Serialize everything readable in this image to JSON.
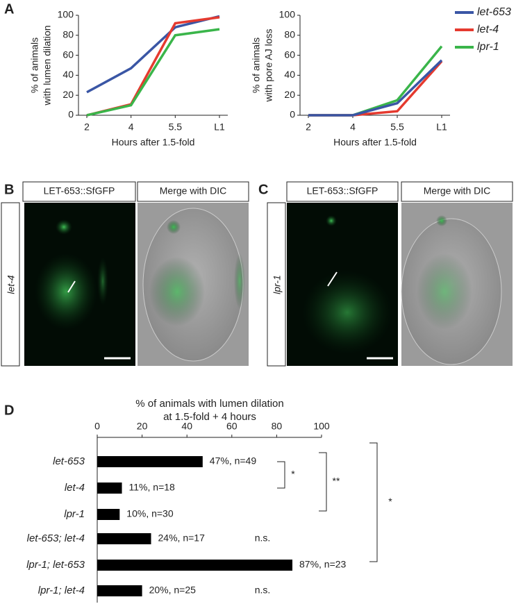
{
  "panel_labels": [
    "A",
    "B",
    "C",
    "D"
  ],
  "chart_data": [
    {
      "type": "line",
      "y_label": [
        "% of animals",
        "with lumen dilation"
      ],
      "x_label": "Hours after 1.5-fold",
      "categories": [
        "2",
        "4",
        "5.5",
        "L1"
      ],
      "series": [
        {
          "name": "let-653",
          "color": "#3a56a5",
          "values": [
            23,
            47,
            88,
            99
          ]
        },
        {
          "name": "let-4",
          "color": "#e53a2f",
          "values": [
            0,
            11,
            92,
            98
          ]
        },
        {
          "name": "lpr-1",
          "color": "#3ab54a",
          "values": [
            0,
            10,
            80,
            86
          ]
        }
      ],
      "ylim": [
        0,
        100
      ],
      "yticks": [
        0,
        20,
        40,
        60,
        80,
        100
      ],
      "legend": "right"
    },
    {
      "type": "line",
      "y_label": [
        "% of animals",
        "with  pore AJ loss"
      ],
      "x_label": "Hours after 1.5-fold",
      "categories": [
        "2",
        "4",
        "5.5",
        "L1"
      ],
      "series": [
        {
          "color": "#3ab54a",
          "values": [
            0,
            0,
            15,
            69
          ]
        },
        {
          "color": "#e53a2f",
          "values": [
            0,
            0,
            4,
            54
          ]
        },
        {
          "color": "#3a56a5",
          "values": [
            0,
            0,
            12,
            55
          ]
        }
      ],
      "ylim": [
        0,
        100
      ],
      "yticks": [
        0,
        20,
        40,
        60,
        80,
        100
      ]
    },
    {
      "type": "hbar",
      "title": [
        "% of animals with lumen dilation",
        "at 1.5-fold + 4 hours"
      ],
      "categories": [
        "let-653",
        "let-4",
        "lpr-1",
        "let-653; let-4",
        "lpr-1; let-653",
        "lpr-1; let-4"
      ],
      "values": [
        47,
        11,
        10,
        24,
        87,
        20
      ],
      "value_labels": [
        "47%, n=49",
        "11%, n=18",
        "10%, n=30",
        "24%, n=17",
        "87%, n=23",
        "20%, n=25"
      ],
      "color": "#000000",
      "xlim": [
        0,
        100
      ],
      "xticks": [
        0,
        20,
        40,
        60,
        80,
        100
      ],
      "annotations": [
        "*",
        "**",
        "*",
        "n.s.",
        "n.s."
      ]
    }
  ],
  "images": [
    {
      "channel_labels": [
        "LET-653::SfGFP",
        "Merge with DIC"
      ],
      "row_label": "let-4"
    },
    {
      "channel_labels": [
        "LET-653::SfGFP",
        "Merge with DIC"
      ],
      "row_label": "lpr-1"
    }
  ]
}
